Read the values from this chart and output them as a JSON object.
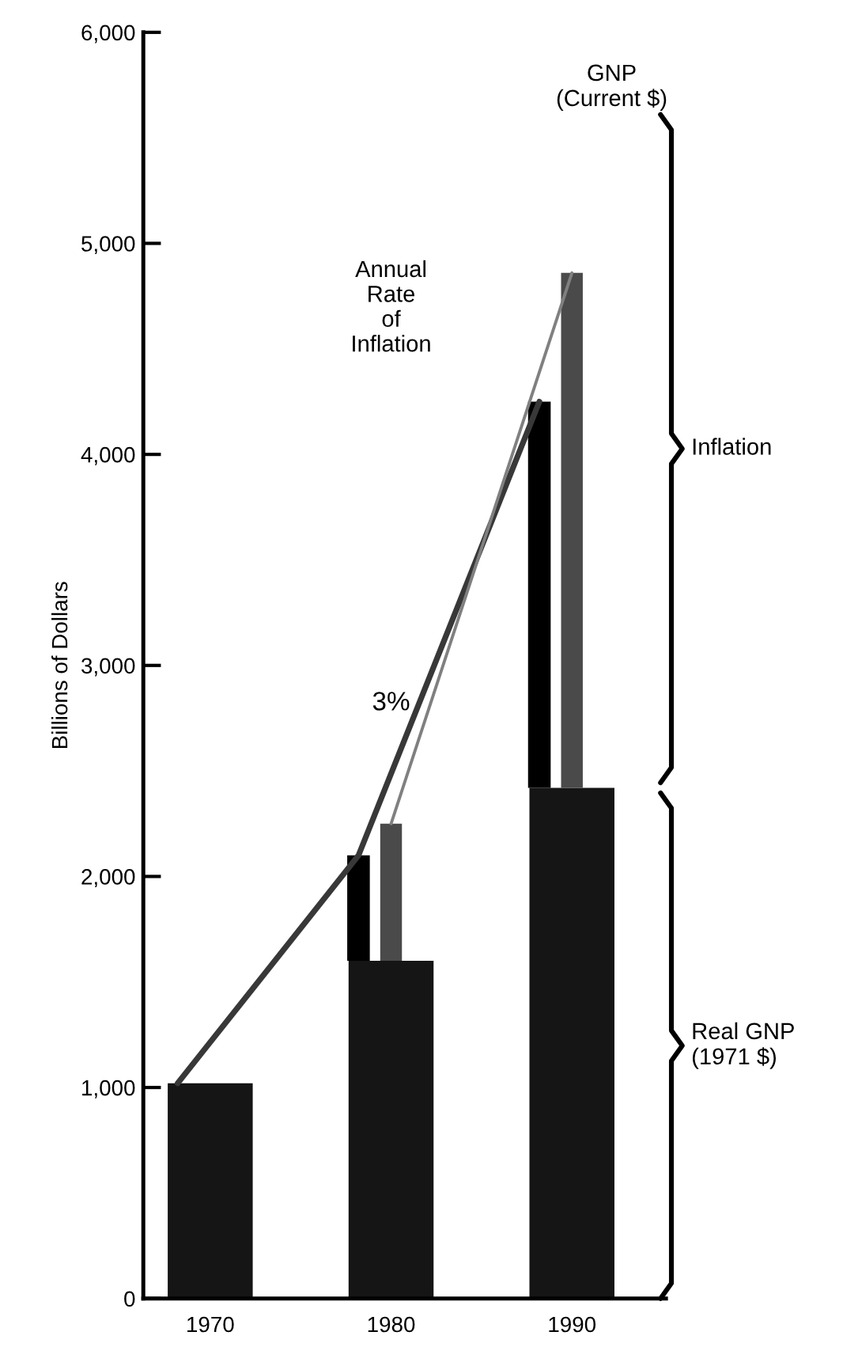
{
  "chart_data": {
    "type": "bar",
    "ylabel": "Billions of Dollars",
    "categories": [
      "1970",
      "1980",
      "1990"
    ],
    "ylim": [
      0,
      6000
    ],
    "yticks": [
      0,
      {
        "value": 1000,
        "label": "1,000"
      },
      {
        "value": 2000,
        "label": "2,000"
      },
      {
        "value": 3000,
        "label": "3,000"
      },
      {
        "value": 4000,
        "label": "4,000"
      },
      {
        "value": 5000,
        "label": "5,000"
      },
      {
        "value": 6000,
        "label": "6,000"
      }
    ],
    "grid": false,
    "legend": false,
    "series": [
      {
        "color": "#151515",
        "values": [
          1020,
          1600,
          2420
        ]
      },
      {
        "color": "#000000",
        "base": [
          null,
          1600,
          2420
        ],
        "values": [
          null,
          500,
          1830
        ]
      },
      {
        "color": "#4a4a4a",
        "base": [
          null,
          1600,
          2420
        ],
        "values": [
          null,
          650,
          2440
        ]
      },
      {
        "type": "line",
        "color": "#383838",
        "values": [
          1020,
          2100,
          4250
        ]
      },
      {
        "type": "line",
        "color": "#808080",
        "values": [
          null,
          2250,
          4860
        ]
      }
    ],
    "annotations": [
      "GNP\n(Current $)",
      "Annual\nRate\nof\nInflation",
      "3%",
      "Inflation",
      "Real GNP\n(1971 $)"
    ]
  }
}
